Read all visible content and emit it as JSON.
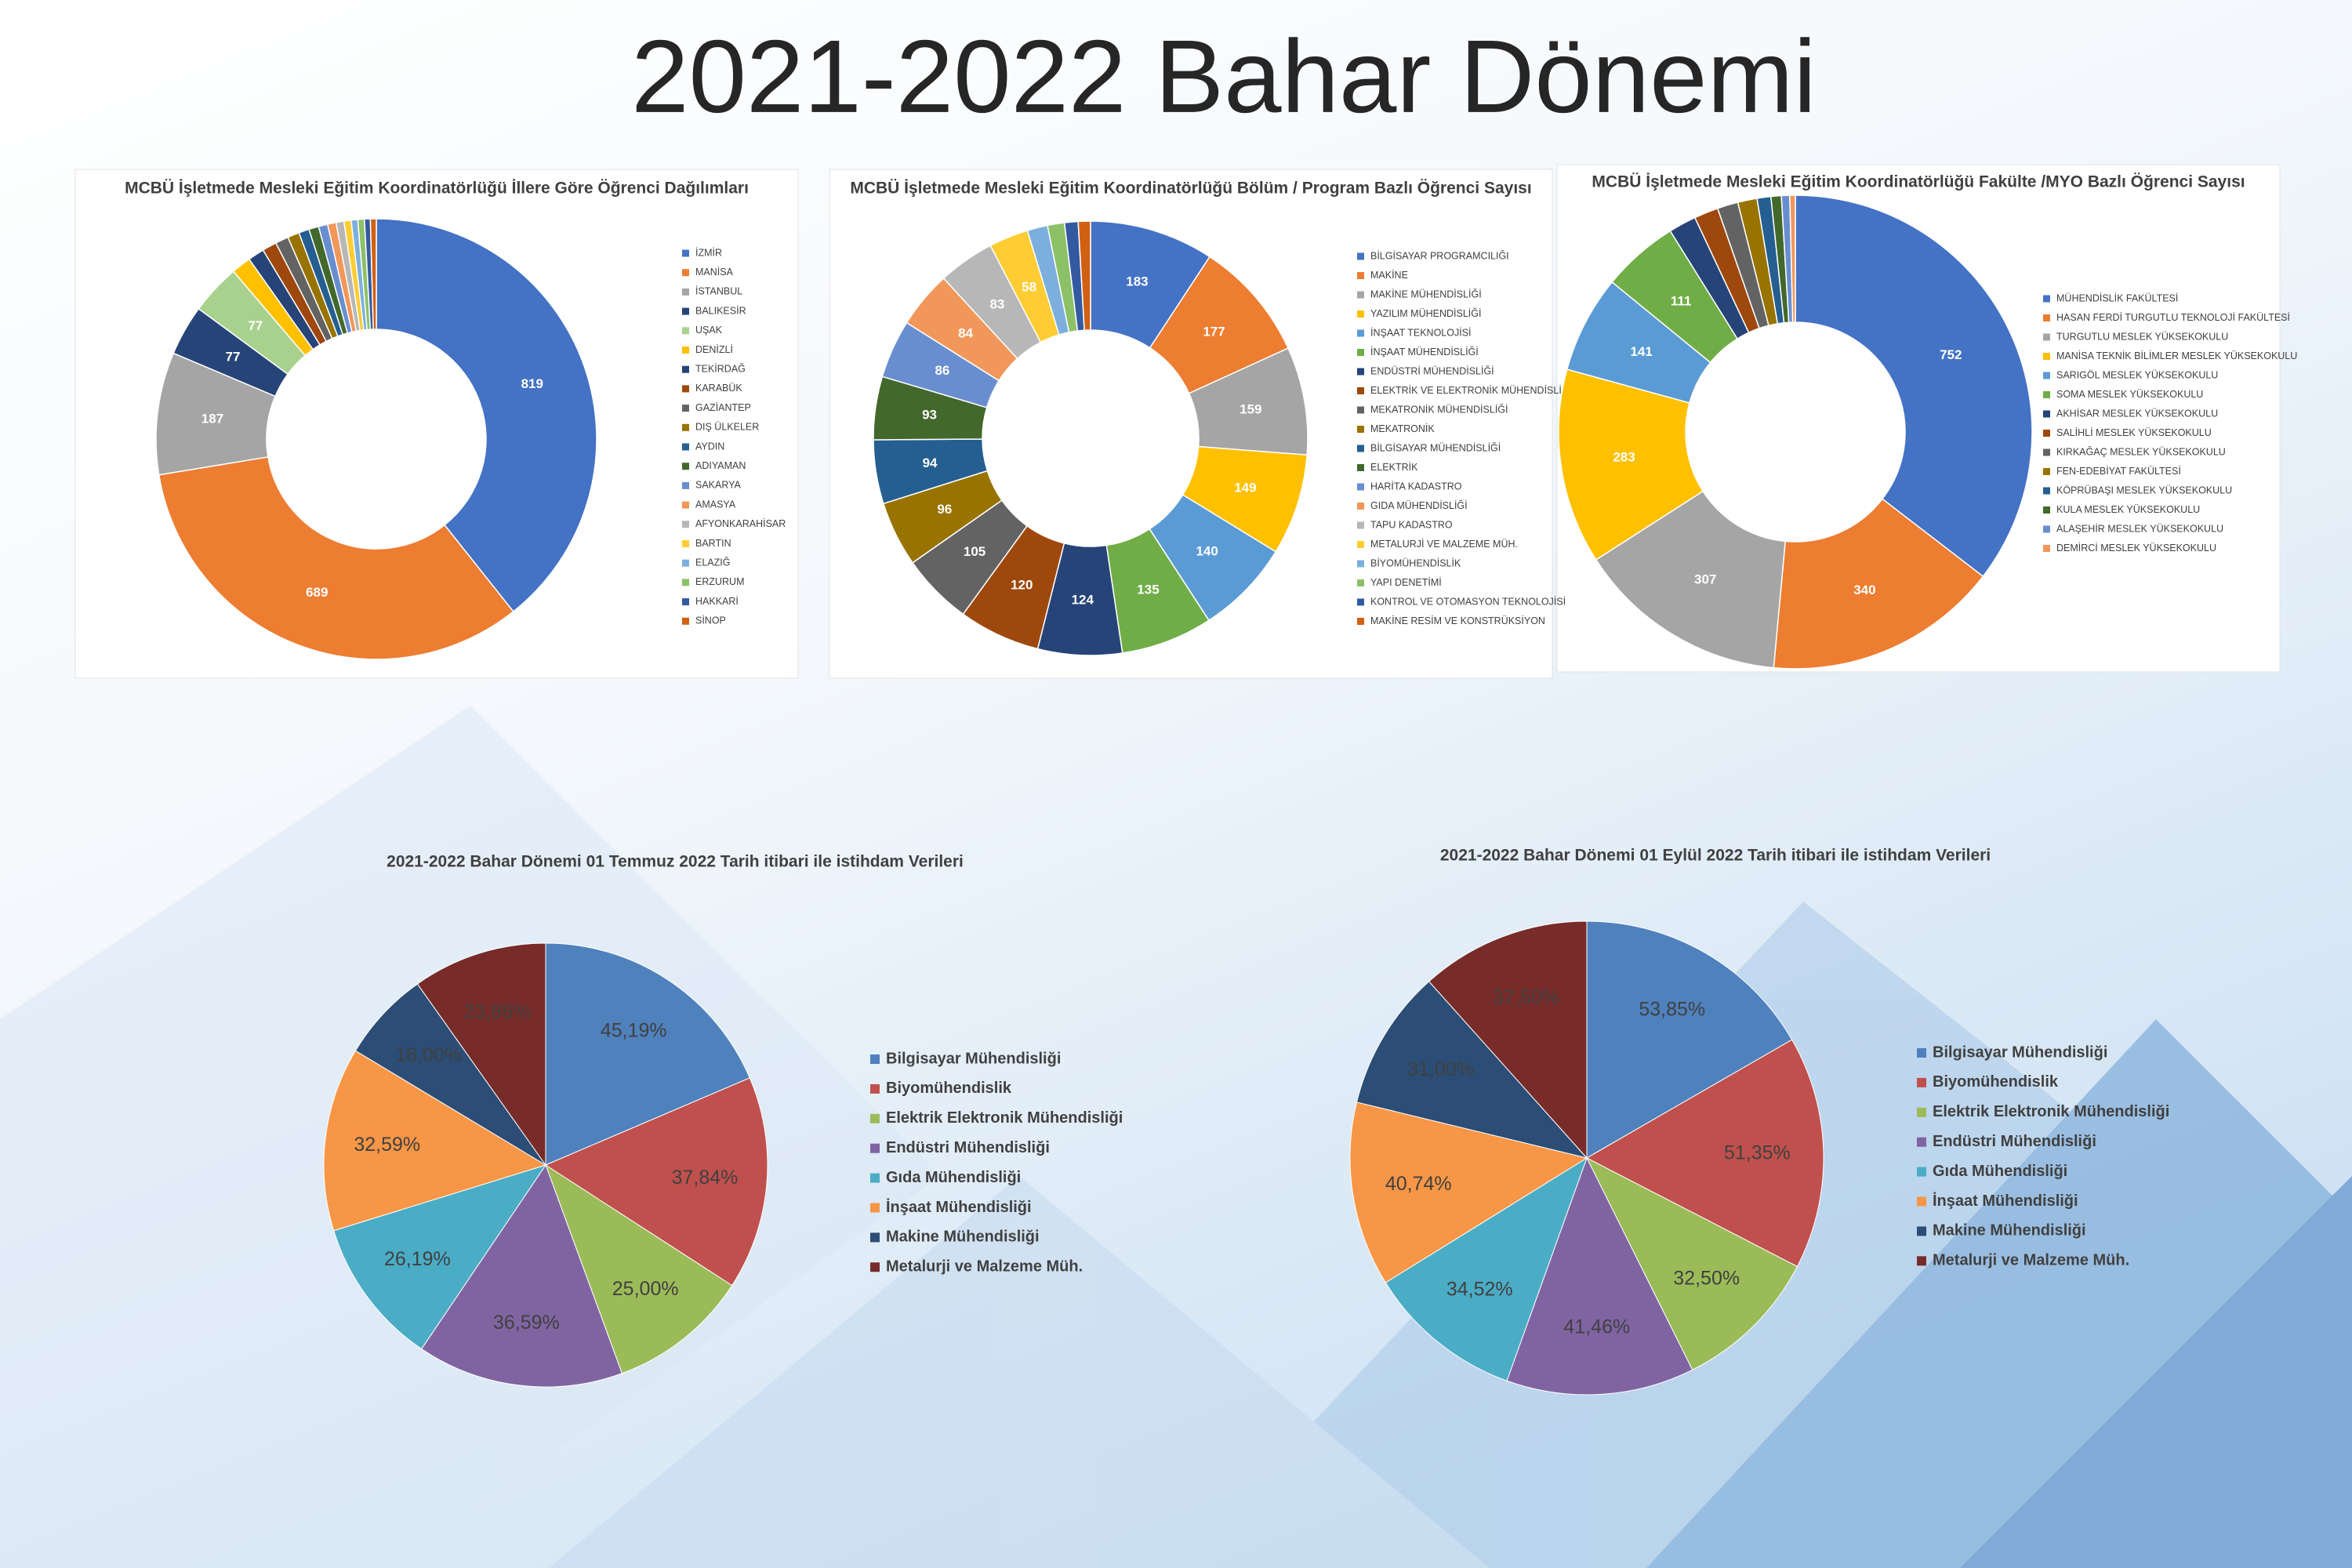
{
  "title": "2021-2022 Bahar Dönemi",
  "chart_data": [
    {
      "type": "donut",
      "title": "MCBÜ İşletmede Mesleki Eğitim Koordinatörlüğü İllere Göre Öğrenci Dağılımları",
      "categories": [
        "İZMİR",
        "MANİSA",
        "İSTANBUL",
        "BALIKESİR",
        "UŞAK",
        "DENİZLİ",
        "TEKİRDAĞ",
        "KARABÜK",
        "GAZİANTEP",
        "DIŞ ÜLKELER",
        "AYDIN",
        "ADIYAMAN",
        "SAKARYA",
        "AMASYA",
        "AFYONKARAHİSAR",
        "BARTIN",
        "ELAZIĞ",
        "ERZURUM",
        "HAKKARİ",
        "SİNOP"
      ],
      "values": [
        819,
        689,
        187,
        77,
        77,
        30,
        25,
        22,
        20,
        18,
        16,
        15,
        14,
        13,
        12,
        11,
        10,
        10,
        9,
        9
      ],
      "colors": [
        "#4472c4",
        "#ed7d31",
        "#a5a5a5",
        "#264478",
        "#a9d18e",
        "#ffc000",
        "#264478",
        "#9e480e",
        "#636363",
        "#997300",
        "#255e91",
        "#43682b",
        "#698ed0",
        "#f1975a",
        "#b7b7b7",
        "#ffcd33",
        "#7cafdd",
        "#8cc168",
        "#335aa1",
        "#d26012"
      ]
    },
    {
      "type": "donut",
      "title": "MCBÜ İşletmede Mesleki Eğitim Koordinatörlüğü Bölüm / Program Bazlı Öğrenci Sayısı",
      "categories": [
        "BİLGİSAYAR PROGRAMCILIĞI",
        "MAKİNE",
        "MAKİNE MÜHENDİSLİĞİ",
        "YAZILIM MÜHENDİSLİĞİ",
        "İNŞAAT TEKNOLOJİSİ",
        "İNŞAAT MÜHENDİSLİĞİ",
        "ENDÜSTRİ MÜHENDİSLİĞİ",
        "ELEKTRİK VE ELEKTRONİK MÜHENDİSLİĞİ",
        "MEKATRONİK MÜHENDİSLİĞİ",
        "MEKATRONİK",
        "BİLGİSAYAR MÜHENDİSLİĞİ",
        "ELEKTRİK",
        "HARİTA KADASTRO",
        "GIDA MÜHENDİSLİĞİ",
        "TAPU KADASTRO",
        "METALURJİ VE MALZEME MÜH.",
        "BİYOMÜHENDİSLİK",
        "YAPI DENETİMİ",
        "KONTROL VE OTOMASYON TEKNOLOJİSİ",
        "MAKİNE RESİM VE KONSTRÜKSİYON"
      ],
      "values": [
        183,
        177,
        159,
        149,
        140,
        135,
        124,
        120,
        105,
        96,
        94,
        93,
        86,
        84,
        83,
        58,
        30,
        25,
        20,
        18
      ],
      "colors": [
        "#4472c4",
        "#ed7d31",
        "#a5a5a5",
        "#ffc000",
        "#5b9bd5",
        "#70ad47",
        "#264478",
        "#9e480e",
        "#636363",
        "#997300",
        "#255e91",
        "#43682b",
        "#698ed0",
        "#f1975a",
        "#b7b7b7",
        "#ffcd33",
        "#7cafdd",
        "#8cc168",
        "#335aa1",
        "#d26012"
      ]
    },
    {
      "type": "donut",
      "title": "MCBÜ İşletmede Mesleki Eğitim Koordinatörlüğü Fakülte /MYO Bazlı Öğrenci Sayısı",
      "categories": [
        "MÜHENDİSLİK FAKÜLTESİ",
        "HASAN FERDİ TURGUTLU TEKNOLOJİ FAKÜLTESİ",
        "TURGUTLU MESLEK YÜKSEKOKULU",
        "MANİSA TEKNİK BİLİMLER MESLEK YÜKSEKOKULU",
        "SARIGÖL MESLEK YÜKSEKOKULU",
        "SOMA MESLEK YÜKSEKOKULU",
        "AKHİSAR MESLEK YÜKSEKOKULU",
        "SALİHLİ MESLEK YÜKSEKOKULU",
        "KIRKAĞAÇ MESLEK YÜKSEKOKULU",
        "FEN-EDEBİYAT FAKÜLTESİ",
        "KÖPRÜBAŞI MESLEK YÜKSEKOKULU",
        "KULA MESLEK YÜKSEKOKULU",
        "ALAŞEHİR MESLEK YÜKSEKOKULU",
        "DEMİRCİ MESLEK YÜKSEKOKULU"
      ],
      "values": [
        752,
        340,
        307,
        283,
        141,
        111,
        40,
        35,
        30,
        28,
        20,
        15,
        12,
        8
      ],
      "colors": [
        "#4472c4",
        "#ed7d31",
        "#a5a5a5",
        "#ffc000",
        "#5b9bd5",
        "#70ad47",
        "#264478",
        "#9e480e",
        "#636363",
        "#997300",
        "#255e91",
        "#43682b",
        "#698ed0",
        "#f1975a"
      ]
    },
    {
      "type": "pie",
      "title": "2021-2022 Bahar Dönemi 01 Temmuz 2022 Tarih itibari ile istihdam Verileri",
      "categories": [
        "Bilgisayar Mühendisliği",
        "Biyomühendislik",
        "Elektrik Elektronik Mühendisliği",
        "Endüstri Mühendisliği",
        "Gıda Mühendisliği",
        "İnşaat Mühendisliği",
        "Makine Mühendisliği",
        "Metalurji ve Malzeme Müh."
      ],
      "values": [
        45.19,
        37.84,
        25.0,
        36.59,
        26.19,
        32.59,
        16.0,
        23.86
      ],
      "value_labels": [
        "45,19%",
        "37,84%",
        "25,00%",
        "36,59%",
        "26,19%",
        "32,59%",
        "16,00%",
        "23,86%"
      ],
      "colors": [
        "#4f81bd",
        "#c0504d",
        "#9bbb59",
        "#8064a2",
        "#4bacc6",
        "#f79646",
        "#2c4d75",
        "#772c2a"
      ]
    },
    {
      "type": "pie",
      "title": "2021-2022 Bahar Dönemi 01 Eylül 2022 Tarih itibari ile istihdam Verileri",
      "categories": [
        "Bilgisayar Mühendisliği",
        "Biyomühendislik",
        "Elektrik Elektronik Mühendisliği",
        "Endüstri Mühendisliği",
        "Gıda Mühendisliği",
        "İnşaat Mühendisliği",
        "Makine Mühendisliği",
        "Metalurji ve Malzeme Müh."
      ],
      "values": [
        53.85,
        51.35,
        32.5,
        41.46,
        34.52,
        40.74,
        31.0,
        37.5
      ],
      "value_labels": [
        "53,85%",
        "51,35%",
        "32,50%",
        "41,46%",
        "34,52%",
        "40,74%",
        "31,00%",
        "37,50%"
      ],
      "colors": [
        "#4f81bd",
        "#c0504d",
        "#9bbb59",
        "#8064a2",
        "#4bacc6",
        "#f79646",
        "#2c4d75",
        "#772c2a"
      ]
    }
  ]
}
